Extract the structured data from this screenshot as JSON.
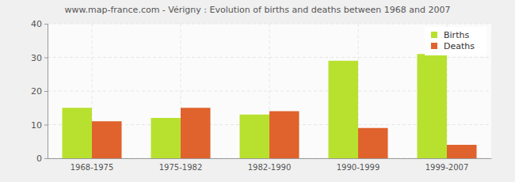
{
  "chart_data": {
    "type": "bar",
    "title": "www.map-france.com - Vérigny : Evolution of births and deaths between 1968 and 2007",
    "categories": [
      "1968-1975",
      "1975-1982",
      "1982-1990",
      "1990-1999",
      "1999-2007"
    ],
    "series": [
      {
        "name": "Births",
        "color": "#b8e12f",
        "values": [
          15,
          12,
          13,
          29,
          31
        ]
      },
      {
        "name": "Deaths",
        "color": "#e0622d",
        "values": [
          11,
          15,
          14,
          9,
          4
        ]
      }
    ],
    "ylim": [
      0,
      40
    ],
    "yticks": [
      0,
      10,
      20,
      30,
      40
    ],
    "grid": true,
    "legend": "top-right"
  }
}
